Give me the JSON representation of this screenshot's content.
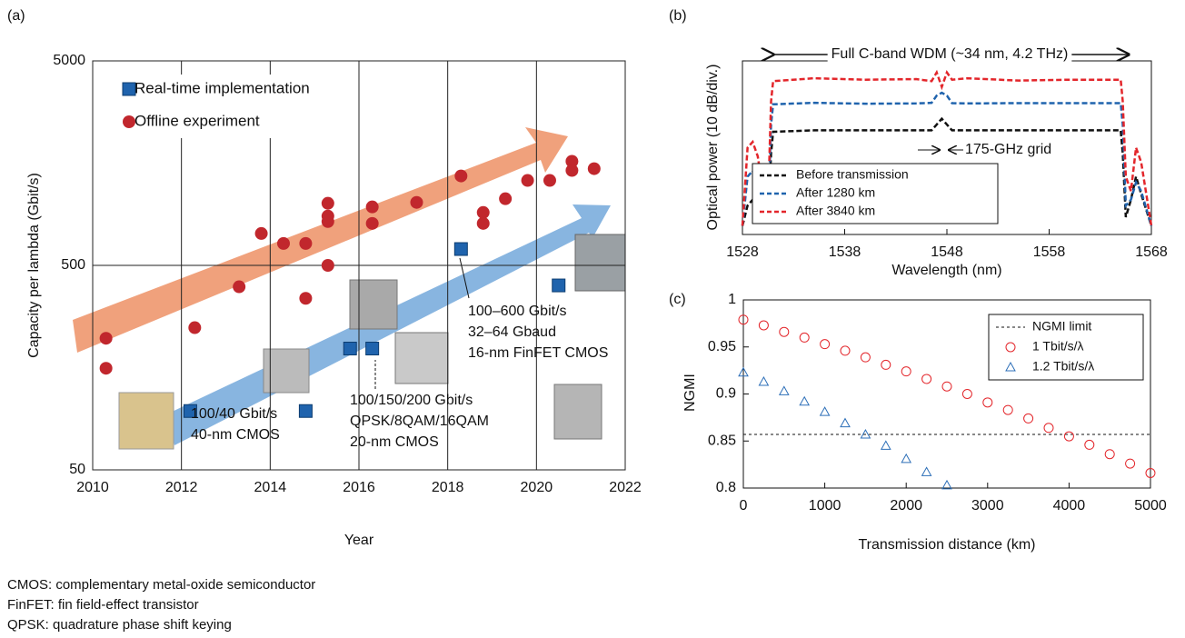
{
  "chart_data": [
    {
      "type": "scatter",
      "label": "(a)",
      "xlabel": "Year",
      "ylabel": "Capacity per lambda (Gbit/s)",
      "xlim": [
        2010,
        2022
      ],
      "xticks": [
        2010,
        2012,
        2014,
        2016,
        2018,
        2020,
        2022
      ],
      "ylim": [
        50,
        5000
      ],
      "yticks": [
        50,
        500,
        5000
      ],
      "log_y": true,
      "grid": true,
      "series": [
        {
          "name": "Real-time implementation",
          "color": "#1f63ad",
          "marker": "square",
          "x": [
            2012.2,
            2014.8,
            2015.8,
            2016.3,
            2018.3,
            2020.5
          ],
          "values": [
            97,
            97,
            196,
            196,
            601,
            399
          ]
        },
        {
          "name": "Offline experiment",
          "color": "#c1272d",
          "marker": "circle",
          "x": [
            2010.3,
            2010.3,
            2012.3,
            2013.3,
            2013.8,
            2014.3,
            2014.8,
            2014.8,
            2015.3,
            2015.3,
            2015.3,
            2015.3,
            2016.3,
            2016.3,
            2017.3,
            2018.3,
            2018.8,
            2018.8,
            2019.3,
            2019.8,
            2020.3,
            2020.8,
            2020.8,
            2021.3
          ],
          "values": [
            220,
            157,
            248,
            393,
            716,
            640,
            640,
            345,
            1006,
            871,
            819,
            500,
            966,
            802,
            1016,
            1369,
            907,
            802,
            1059,
            1301,
            1301,
            1614,
            1456,
            1486
          ]
        }
      ],
      "annotations": [
        "100/40 Gbit/s",
        "40-nm CMOS",
        "100/150/200 Gbit/s",
        "QPSK/8QAM/16QAM",
        "20-nm CMOS",
        "100–600 Gbit/s",
        "32–64 Gbaud",
        "16-nm FinFET CMOS"
      ]
    },
    {
      "type": "line",
      "label": "(b)",
      "xlabel": "Wavelength (nm)",
      "ylabel": "Optical power (10 dB/div.)",
      "xlim": [
        1528,
        1568
      ],
      "xticks": [
        1528,
        1538,
        1548,
        1558,
        1568
      ],
      "ylim": [
        -60,
        0
      ],
      "x": [
        1528,
        1528.5,
        1529,
        1529.5,
        1530,
        1530.5,
        1530.8,
        1531,
        1535,
        1540,
        1545,
        1546.5,
        1547,
        1547.5,
        1548,
        1548.5,
        1550,
        1555,
        1560,
        1565,
        1565.2,
        1565.5,
        1566,
        1566.5,
        1567,
        1568
      ],
      "series": [
        {
          "name": "Before transmission",
          "color": "#111111",
          "values": [
            -57,
            -50,
            -48,
            -52,
            -55,
            -56,
            -32,
            -24.5,
            -24,
            -24,
            -24,
            -24,
            -22,
            -20,
            -22,
            -24,
            -24,
            -24,
            -24,
            -24,
            -32,
            -54,
            -48,
            -40,
            -46,
            -57
          ]
        },
        {
          "name": "After 1280 km",
          "color": "#1f63ad",
          "values": [
            -57,
            -40,
            -38,
            -45,
            -50,
            -53,
            -22,
            -15,
            -14.5,
            -14.8,
            -14.7,
            -14.5,
            -12,
            -11,
            -12,
            -14.6,
            -14.7,
            -14.6,
            -14.6,
            -14.6,
            -22,
            -50,
            -48,
            -42,
            -45,
            -57
          ]
        },
        {
          "name": "After 3840 km",
          "color": "#e3262b",
          "values": [
            -57,
            -30,
            -28,
            -33,
            -45,
            -50,
            -14,
            -7,
            -6,
            -6.5,
            -6.3,
            -7,
            -4,
            -9,
            -4,
            -6.5,
            -6,
            -6.8,
            -6.5,
            -6.5,
            -14,
            -40,
            -45,
            -30,
            -35,
            -57
          ]
        }
      ],
      "annotations": [
        "Full C-band WDM (~34 nm, 4.2 THz)",
        "175-GHz grid"
      ]
    },
    {
      "type": "scatter",
      "label": "(c)",
      "xlabel": "Transmission distance (km)",
      "ylabel": "NGMI",
      "xlim": [
        0,
        5000
      ],
      "xticks": [
        0,
        1000,
        2000,
        3000,
        4000,
        5000
      ],
      "ylim": [
        0.8,
        1
      ],
      "yticks": [
        0.8,
        0.85,
        0.9,
        0.95,
        1
      ],
      "series": [
        {
          "name": "NGMI limit",
          "color": "#111111",
          "marker": "line",
          "x": [
            0,
            5000
          ],
          "values": [
            0.857,
            0.857
          ]
        },
        {
          "name": "1 Tbit/s/λ",
          "color": "#e3262b",
          "marker": "open-circle",
          "x": [
            0,
            250,
            500,
            750,
            1000,
            1250,
            1500,
            1750,
            2000,
            2250,
            2500,
            2750,
            3000,
            3250,
            3500,
            3750,
            4000,
            4250,
            4500,
            4750,
            5000
          ],
          "values": [
            0.979,
            0.973,
            0.966,
            0.96,
            0.953,
            0.946,
            0.939,
            0.931,
            0.924,
            0.916,
            0.908,
            0.9,
            0.891,
            0.883,
            0.874,
            0.864,
            0.855,
            0.846,
            0.836,
            0.826,
            0.816
          ]
        },
        {
          "name": "1.2 Tbit/s/λ",
          "color": "#2d6fb8",
          "marker": "open-triangle",
          "x": [
            0,
            250,
            500,
            750,
            1000,
            1250,
            1500,
            1750,
            2000,
            2250,
            2500
          ],
          "values": [
            0.923,
            0.913,
            0.903,
            0.892,
            0.881,
            0.869,
            0.857,
            0.845,
            0.831,
            0.817,
            0.803
          ]
        }
      ]
    }
  ],
  "notes": [
    "CMOS: complementary metal-oxide semiconductor",
    "FinFET: fin field-effect transistor",
    "QPSK: quadrature phase shift keying"
  ]
}
